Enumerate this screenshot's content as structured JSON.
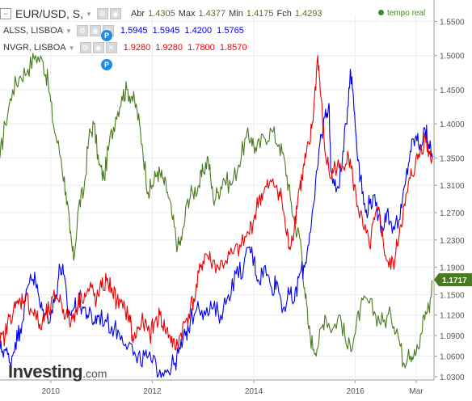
{
  "legend": {
    "main": {
      "symbol": "EUR/USD, S,",
      "open_label": "Abr",
      "open": "1.4305",
      "high_label": "Max",
      "high": "1.4377",
      "low_label": "Min",
      "low": "1.4175",
      "close_label": "Fch",
      "close": "1.4293",
      "color": "#4a7a1e"
    },
    "alss": {
      "symbol": "ALSS, LISBOA",
      "values": "1.5945  1.5945  1.4200  1.5765",
      "color": "#0000ee"
    },
    "nvgr": {
      "symbol": "NVGR, LISBOA",
      "values": "1.9280  1.9280  1.7800  1.8570",
      "color": "#ee0000"
    }
  },
  "realtime": "tempo real",
  "event_marker": "P",
  "logo": {
    "name": "Investing",
    "suffix": ".com"
  },
  "chart_data": {
    "type": "line",
    "xlabels": [
      "2010",
      "2012",
      "2014",
      "2016",
      "Mar"
    ],
    "yticks": [
      "1.5500",
      "1.5000",
      "1.4500",
      "1.4000",
      "1.3500",
      "1.3100",
      "1.2700",
      "1.2300",
      "1.1900",
      "1.1500",
      "1.1200",
      "1.0900",
      "1.0600",
      "1.0300"
    ],
    "last_value": "1.1717",
    "ylim": [
      1.025,
      1.56
    ],
    "grid": true,
    "series": [
      {
        "color": "#4a7a1e",
        "points": [
          [
            2009.0,
            1.35
          ],
          [
            2009.1,
            1.4
          ],
          [
            2009.25,
            1.45
          ],
          [
            2009.4,
            1.47
          ],
          [
            2009.55,
            1.48
          ],
          [
            2009.7,
            1.5
          ],
          [
            2009.85,
            1.49
          ],
          [
            2009.95,
            1.46
          ],
          [
            2010.05,
            1.4
          ],
          [
            2010.2,
            1.35
          ],
          [
            2010.3,
            1.3
          ],
          [
            2010.38,
            1.24
          ],
          [
            2010.45,
            1.2
          ],
          [
            2010.55,
            1.28
          ],
          [
            2010.65,
            1.3
          ],
          [
            2010.75,
            1.38
          ],
          [
            2010.85,
            1.4
          ],
          [
            2010.95,
            1.34
          ],
          [
            2011.05,
            1.32
          ],
          [
            2011.15,
            1.37
          ],
          [
            2011.28,
            1.41
          ],
          [
            2011.4,
            1.44
          ],
          [
            2011.5,
            1.45
          ],
          [
            2011.6,
            1.44
          ],
          [
            2011.7,
            1.42
          ],
          [
            2011.8,
            1.37
          ],
          [
            2011.92,
            1.3
          ],
          [
            2012.0,
            1.31
          ],
          [
            2012.1,
            1.33
          ],
          [
            2012.2,
            1.32
          ],
          [
            2012.3,
            1.3
          ],
          [
            2012.4,
            1.26
          ],
          [
            2012.5,
            1.22
          ],
          [
            2012.58,
            1.23
          ],
          [
            2012.7,
            1.29
          ],
          [
            2012.8,
            1.3
          ],
          [
            2012.92,
            1.31
          ],
          [
            2013.0,
            1.33
          ],
          [
            2013.1,
            1.35
          ],
          [
            2013.2,
            1.29
          ],
          [
            2013.3,
            1.3
          ],
          [
            2013.4,
            1.32
          ],
          [
            2013.55,
            1.31
          ],
          [
            2013.7,
            1.34
          ],
          [
            2013.85,
            1.38
          ],
          [
            2013.95,
            1.38
          ],
          [
            2014.05,
            1.36
          ],
          [
            2014.2,
            1.38
          ],
          [
            2014.35,
            1.39
          ],
          [
            2014.5,
            1.37
          ],
          [
            2014.62,
            1.34
          ],
          [
            2014.72,
            1.29
          ],
          [
            2014.82,
            1.25
          ],
          [
            2014.92,
            1.23
          ],
          [
            2015.0,
            1.16
          ],
          [
            2015.08,
            1.1
          ],
          [
            2015.18,
            1.07
          ],
          [
            2015.28,
            1.08
          ],
          [
            2015.4,
            1.12
          ],
          [
            2015.55,
            1.1
          ],
          [
            2015.7,
            1.12
          ],
          [
            2015.85,
            1.07
          ],
          [
            2015.98,
            1.09
          ],
          [
            2016.1,
            1.13
          ],
          [
            2016.25,
            1.14
          ],
          [
            2016.4,
            1.12
          ],
          [
            2016.55,
            1.11
          ],
          [
            2016.7,
            1.12
          ],
          [
            2016.82,
            1.1
          ],
          [
            2016.95,
            1.05
          ],
          [
            2017.05,
            1.07
          ],
          [
            2017.15,
            1.06
          ],
          [
            2017.25,
            1.07
          ],
          [
            2017.35,
            1.12
          ],
          [
            2017.45,
            1.13
          ],
          [
            2017.52,
            1.17
          ]
        ]
      },
      {
        "color": "#0000ee",
        "points": [
          [
            2009.0,
            1.07
          ],
          [
            2009.1,
            1.07
          ],
          [
            2009.2,
            1.05
          ],
          [
            2009.3,
            1.08
          ],
          [
            2009.4,
            1.1
          ],
          [
            2009.5,
            1.14
          ],
          [
            2009.6,
            1.18
          ],
          [
            2009.7,
            1.17
          ],
          [
            2009.8,
            1.13
          ],
          [
            2009.9,
            1.12
          ],
          [
            2010.0,
            1.12
          ],
          [
            2010.1,
            1.15
          ],
          [
            2010.18,
            1.19
          ],
          [
            2010.25,
            1.18
          ],
          [
            2010.35,
            1.12
          ],
          [
            2010.45,
            1.13
          ],
          [
            2010.55,
            1.14
          ],
          [
            2010.65,
            1.13
          ],
          [
            2010.75,
            1.12
          ],
          [
            2010.85,
            1.11
          ],
          [
            2010.95,
            1.12
          ],
          [
            2011.1,
            1.11
          ],
          [
            2011.25,
            1.1
          ],
          [
            2011.4,
            1.09
          ],
          [
            2011.55,
            1.08
          ],
          [
            2011.7,
            1.05
          ],
          [
            2011.85,
            1.06
          ],
          [
            2012.0,
            1.05
          ],
          [
            2012.15,
            1.04
          ],
          [
            2012.3,
            1.04
          ],
          [
            2012.45,
            1.05
          ],
          [
            2012.55,
            1.07
          ],
          [
            2012.65,
            1.09
          ],
          [
            2012.75,
            1.11
          ],
          [
            2012.9,
            1.14
          ],
          [
            2013.05,
            1.12
          ],
          [
            2013.2,
            1.13
          ],
          [
            2013.35,
            1.12
          ],
          [
            2013.5,
            1.15
          ],
          [
            2013.65,
            1.18
          ],
          [
            2013.8,
            1.19
          ],
          [
            2013.92,
            1.22
          ],
          [
            2014.0,
            1.2
          ],
          [
            2014.1,
            1.17
          ],
          [
            2014.2,
            1.19
          ],
          [
            2014.35,
            1.16
          ],
          [
            2014.45,
            1.17
          ],
          [
            2014.58,
            1.13
          ],
          [
            2014.7,
            1.15
          ],
          [
            2014.8,
            1.14
          ],
          [
            2014.9,
            1.18
          ],
          [
            2015.0,
            1.19
          ],
          [
            2015.1,
            1.24
          ],
          [
            2015.2,
            1.29
          ],
          [
            2015.3,
            1.37
          ],
          [
            2015.4,
            1.41
          ],
          [
            2015.48,
            1.43
          ],
          [
            2015.52,
            1.33
          ],
          [
            2015.62,
            1.3
          ],
          [
            2015.72,
            1.33
          ],
          [
            2015.82,
            1.4
          ],
          [
            2015.9,
            1.48
          ],
          [
            2015.95,
            1.45
          ],
          [
            2016.02,
            1.38
          ],
          [
            2016.1,
            1.32
          ],
          [
            2016.2,
            1.27
          ],
          [
            2016.3,
            1.29
          ],
          [
            2016.4,
            1.28
          ],
          [
            2016.52,
            1.25
          ],
          [
            2016.62,
            1.27
          ],
          [
            2016.75,
            1.25
          ],
          [
            2016.88,
            1.26
          ],
          [
            2016.98,
            1.31
          ],
          [
            2017.08,
            1.36
          ],
          [
            2017.18,
            1.38
          ],
          [
            2017.28,
            1.37
          ],
          [
            2017.38,
            1.39
          ],
          [
            2017.45,
            1.37
          ],
          [
            2017.52,
            1.35
          ]
        ]
      },
      {
        "color": "#ee0000",
        "points": [
          [
            2009.0,
            1.08
          ],
          [
            2009.1,
            1.09
          ],
          [
            2009.2,
            1.12
          ],
          [
            2009.3,
            1.13
          ],
          [
            2009.4,
            1.14
          ],
          [
            2009.5,
            1.15
          ],
          [
            2009.6,
            1.13
          ],
          [
            2009.7,
            1.12
          ],
          [
            2009.8,
            1.1
          ],
          [
            2009.9,
            1.12
          ],
          [
            2010.0,
            1.13
          ],
          [
            2010.1,
            1.15
          ],
          [
            2010.2,
            1.14
          ],
          [
            2010.3,
            1.12
          ],
          [
            2010.4,
            1.11
          ],
          [
            2010.5,
            1.13
          ],
          [
            2010.6,
            1.15
          ],
          [
            2010.7,
            1.15
          ],
          [
            2010.8,
            1.16
          ],
          [
            2010.9,
            1.14
          ],
          [
            2011.0,
            1.16
          ],
          [
            2011.1,
            1.17
          ],
          [
            2011.2,
            1.16
          ],
          [
            2011.3,
            1.14
          ],
          [
            2011.42,
            1.13
          ],
          [
            2011.55,
            1.12
          ],
          [
            2011.62,
            1.08
          ],
          [
            2011.72,
            1.1
          ],
          [
            2011.82,
            1.11
          ],
          [
            2011.95,
            1.09
          ],
          [
            2012.05,
            1.11
          ],
          [
            2012.15,
            1.12
          ],
          [
            2012.25,
            1.1
          ],
          [
            2012.35,
            1.09
          ],
          [
            2012.45,
            1.07
          ],
          [
            2012.55,
            1.09
          ],
          [
            2012.65,
            1.11
          ],
          [
            2012.75,
            1.13
          ],
          [
            2012.85,
            1.15
          ],
          [
            2012.95,
            1.19
          ],
          [
            2013.05,
            1.21
          ],
          [
            2013.15,
            1.2
          ],
          [
            2013.3,
            1.19
          ],
          [
            2013.45,
            1.2
          ],
          [
            2013.6,
            1.21
          ],
          [
            2013.75,
            1.22
          ],
          [
            2013.9,
            1.24
          ],
          [
            2014.0,
            1.26
          ],
          [
            2014.1,
            1.29
          ],
          [
            2014.2,
            1.3
          ],
          [
            2014.3,
            1.31
          ],
          [
            2014.45,
            1.31
          ],
          [
            2014.55,
            1.29
          ],
          [
            2014.62,
            1.25
          ],
          [
            2014.7,
            1.22
          ],
          [
            2014.8,
            1.25
          ],
          [
            2014.88,
            1.3
          ],
          [
            2014.95,
            1.32
          ],
          [
            2015.02,
            1.35
          ],
          [
            2015.1,
            1.37
          ],
          [
            2015.18,
            1.42
          ],
          [
            2015.26,
            1.5
          ],
          [
            2015.32,
            1.44
          ],
          [
            2015.4,
            1.36
          ],
          [
            2015.52,
            1.32
          ],
          [
            2015.6,
            1.34
          ],
          [
            2015.72,
            1.33
          ],
          [
            2015.85,
            1.36
          ],
          [
            2015.95,
            1.32
          ],
          [
            2016.05,
            1.28
          ],
          [
            2016.15,
            1.25
          ],
          [
            2016.28,
            1.22
          ],
          [
            2016.38,
            1.26
          ],
          [
            2016.48,
            1.27
          ],
          [
            2016.56,
            1.22
          ],
          [
            2016.66,
            1.19
          ],
          [
            2016.78,
            1.2
          ],
          [
            2016.88,
            1.25
          ],
          [
            2016.98,
            1.28
          ],
          [
            2017.08,
            1.32
          ],
          [
            2017.18,
            1.34
          ],
          [
            2017.28,
            1.36
          ],
          [
            2017.38,
            1.38
          ],
          [
            2017.45,
            1.36
          ],
          [
            2017.52,
            1.35
          ]
        ]
      }
    ]
  }
}
